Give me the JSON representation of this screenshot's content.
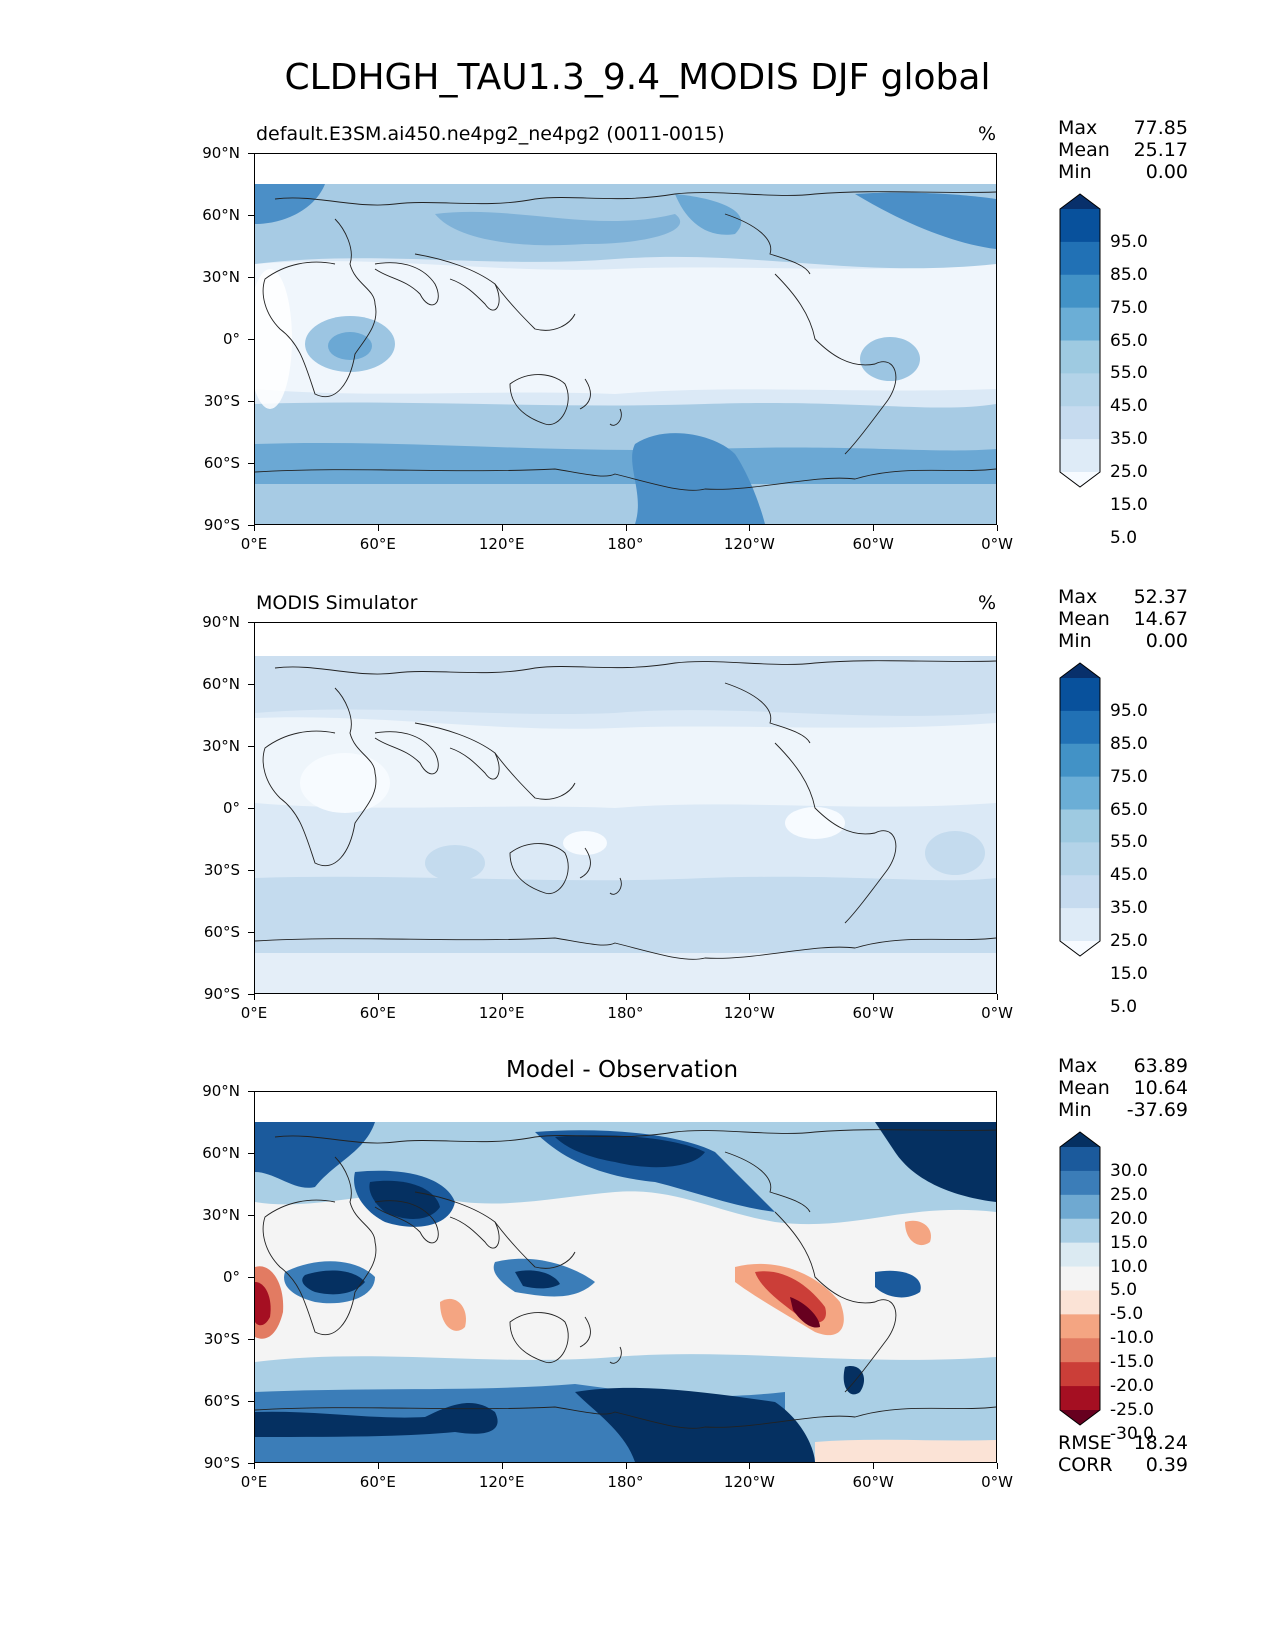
{
  "figure": {
    "title": "CLDHGH_TAU1.3_9.4_MODIS DJF global"
  },
  "axes": {
    "lat_ticks": [
      "90°N",
      "60°N",
      "30°N",
      "0°",
      "30°S",
      "60°S",
      "90°S"
    ],
    "lon_ticks": [
      "0°E",
      "60°E",
      "120°E",
      "180°",
      "120°W",
      "60°W",
      "0°W"
    ]
  },
  "panels": [
    {
      "title": "default.E3SM.ai450.ne4pg2_ne4pg2 (0011-0015)",
      "units": "%",
      "stats": {
        "max_label": "Max",
        "max": "77.85",
        "mean_label": "Mean",
        "mean": "25.17",
        "min_label": "Min",
        "min": "0.00"
      },
      "colorbar_labels": [
        "95.0",
        "85.0",
        "75.0",
        "65.0",
        "55.0",
        "45.0",
        "35.0",
        "25.0",
        "15.0",
        "5.0"
      ]
    },
    {
      "title": "MODIS Simulator",
      "units": "%",
      "stats": {
        "max_label": "Max",
        "max": "52.37",
        "mean_label": "Mean",
        "mean": "14.67",
        "min_label": "Min",
        "min": "0.00"
      },
      "colorbar_labels": [
        "95.0",
        "85.0",
        "75.0",
        "65.0",
        "55.0",
        "45.0",
        "35.0",
        "25.0",
        "15.0",
        "5.0"
      ]
    },
    {
      "title": "Model - Observation",
      "units": "",
      "stats": {
        "max_label": "Max",
        "max": "63.89",
        "mean_label": "Mean",
        "mean": "10.64",
        "min_label": "Min",
        "min": "-37.69"
      },
      "colorbar_labels": [
        "30.0",
        "25.0",
        "20.0",
        "15.0",
        "10.0",
        "5.0",
        "-5.0",
        "-10.0",
        "-15.0",
        "-20.0",
        "-25.0",
        "-30.0"
      ],
      "metrics": {
        "rmse_label": "RMSE",
        "rmse": "18.24",
        "corr_label": "CORR",
        "corr": "0.39"
      }
    }
  ],
  "colors": {
    "blues": [
      "#f7fbff",
      "#deebf7",
      "#c6dbef",
      "#b3d3e8",
      "#9ecae1",
      "#6baed6",
      "#4292c6",
      "#2171b5",
      "#08519c",
      "#08306b"
    ],
    "diverging": [
      "#67001f",
      "#a50f22",
      "#cb3e38",
      "#e27b62",
      "#f4a582",
      "#fbe3d6",
      "#f4f4f4",
      "#dbeaf2",
      "#aacfe5",
      "#6fa9d1",
      "#3b7db8",
      "#1b5a9c",
      "#053061"
    ]
  }
}
